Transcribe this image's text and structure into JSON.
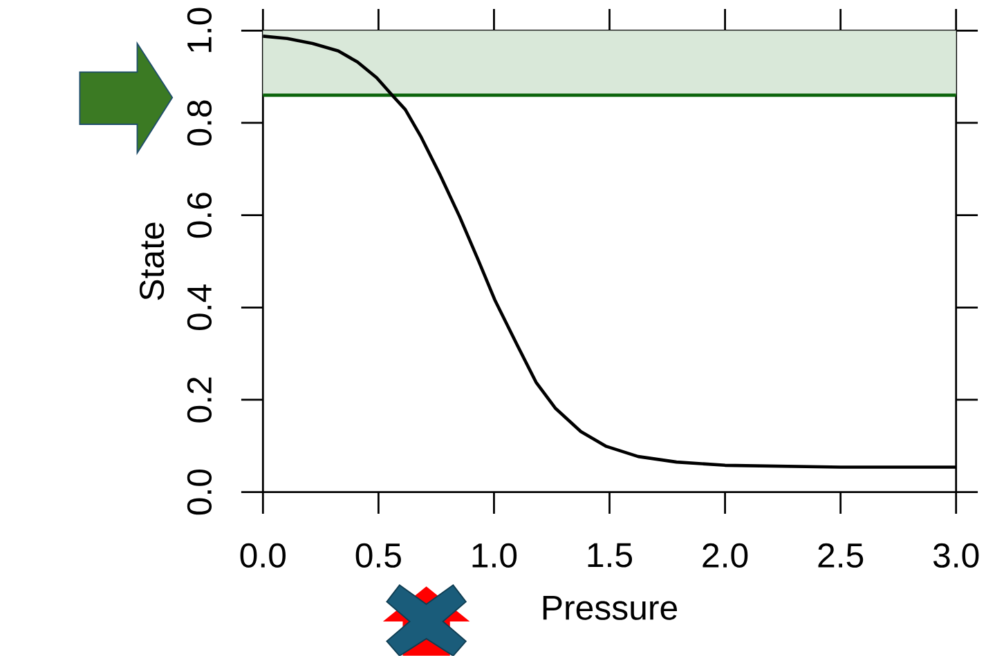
{
  "chart_data": {
    "type": "line",
    "xlabel": "Pressure",
    "ylabel": "State",
    "x": [
      0,
      0.105,
      0.215,
      0.326,
      0.409,
      0.492,
      0.561,
      0.616,
      0.685,
      0.768,
      0.851,
      0.934,
      1.003,
      1.099,
      1.182,
      1.265,
      1.376,
      1.486,
      1.624,
      1.79,
      2.0,
      2.5,
      3.0
    ],
    "series": [
      {
        "color": "#000000",
        "values": [
          0.988,
          0.983,
          0.972,
          0.956,
          0.932,
          0.898,
          0.859,
          0.829,
          0.769,
          0.686,
          0.597,
          0.5,
          0.417,
          0.32,
          0.238,
          0.182,
          0.131,
          0.099,
          0.077,
          0.065,
          0.058,
          0.054,
          0.054
        ]
      }
    ],
    "xlim": [
      0,
      3
    ],
    "ylim": [
      0,
      1
    ],
    "xticks": [
      {
        "value": 0,
        "label": "0.0"
      },
      {
        "value": 0.5,
        "label": "0.5"
      },
      {
        "value": 1,
        "label": "1.0"
      },
      {
        "value": 1.5,
        "label": "1.5"
      },
      {
        "value": 2,
        "label": "2.0"
      },
      {
        "value": 2.5,
        "label": "2.5"
      },
      {
        "value": 3,
        "label": "3.0"
      }
    ],
    "yticks": [
      {
        "value": 0,
        "label": "0.0"
      },
      {
        "value": 0.2,
        "label": "0.2"
      },
      {
        "value": 0.4,
        "label": "0.4"
      },
      {
        "value": 0.6,
        "label": "0.6"
      },
      {
        "value": 0.8,
        "label": "0.8"
      },
      {
        "value": 1,
        "label": "1.0"
      }
    ],
    "bands": [
      {
        "axis": "y",
        "from": 0.86,
        "to": 1.0,
        "color": "#d9e8d9"
      }
    ],
    "ref_lines": [
      {
        "axis": "y",
        "value": 0.86,
        "color": "#0b640b"
      }
    ]
  }
}
